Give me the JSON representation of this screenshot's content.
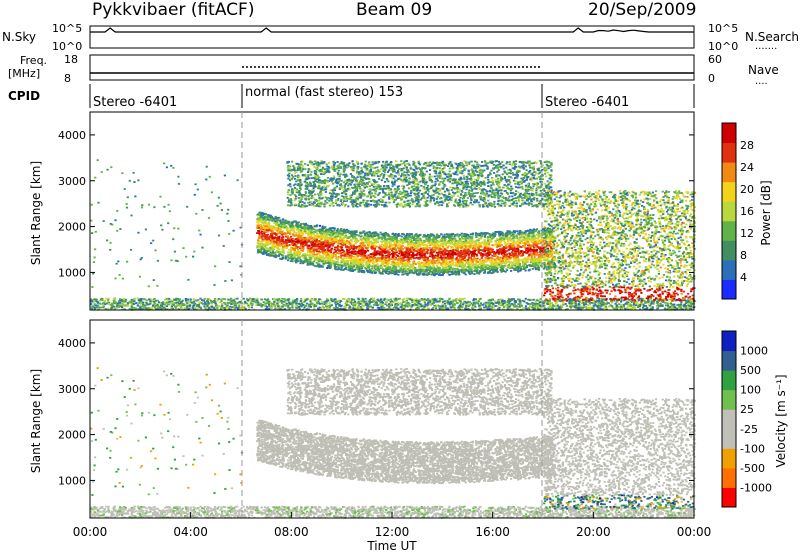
{
  "header": {
    "station": "Pykkvibaer (fitACF)",
    "beam": "Beam 09",
    "date": "20/Sep/2009"
  },
  "colors": {
    "power": [
      "#1a2cff",
      "#2a6fb8",
      "#3f8f60",
      "#62b24a",
      "#b8d83c",
      "#f2d21a",
      "#f08a10",
      "#e03010",
      "#d00000"
    ],
    "velocity": [
      "#ff0000",
      "#ff7000",
      "#f0a000",
      "#c0c0b8",
      "#c0c0b8",
      "#70c050",
      "#30a040",
      "#306090",
      "#1020c0"
    ],
    "ground_scatter": "#bebeb4"
  },
  "chart_data": [
    {
      "type": "line",
      "name": "noise-panel",
      "left_labels": [
        "N.Sky"
      ],
      "right_labels": [
        "N.Search",
        "......."
      ],
      "left_ticks": [
        "10^5",
        "10^0"
      ],
      "right_ticks": [
        "10^5",
        "10^0"
      ],
      "x": [
        0,
        24
      ],
      "description_series": [
        "N.Sky",
        "N.Search"
      ]
    },
    {
      "type": "line",
      "name": "freq-panel",
      "left_labels": [
        "Freq.",
        "[MHz]"
      ],
      "right_labels": [
        "Nave",
        "...."
      ],
      "left_ticks": [
        "18",
        "8"
      ],
      "right_ticks": [
        "60",
        "0"
      ]
    },
    {
      "type": "table",
      "name": "cpid-panel",
      "label": "CPID",
      "segments": [
        {
          "start": 0,
          "end": 6,
          "text": "Stereo -6401"
        },
        {
          "start": 6,
          "end": 18,
          "text": "normal (fast stereo) 153"
        },
        {
          "start": 18,
          "end": 24,
          "text": "Stereo -6401"
        }
      ]
    },
    {
      "type": "heatmap",
      "name": "power-panel",
      "ylabel": "Slant Range [km]",
      "ylim": [
        180,
        4500
      ],
      "yticks": [
        "1000",
        "2000",
        "3000",
        "4000"
      ],
      "xlim": [
        0,
        24
      ],
      "colorbar_label": "Power [dB]",
      "colorbar_ticks": [
        "4",
        "8",
        "12",
        "16",
        "20",
        "24",
        "28"
      ],
      "colorbar_range": [
        0,
        32
      ]
    },
    {
      "type": "heatmap",
      "name": "velocity-panel",
      "ylabel": "Slant Range [km]",
      "ylim": [
        180,
        4500
      ],
      "yticks": [
        "1000",
        "2000",
        "3000",
        "4000"
      ],
      "xlim": [
        0,
        24
      ],
      "colorbar_label": "Velocity [m s⁻¹]",
      "colorbar_ticks": [
        "-1000",
        "-500",
        "-100",
        "-25",
        "25",
        "100",
        "500",
        "1000"
      ]
    }
  ],
  "xaxis": {
    "ticks": [
      "00:00",
      "04:00",
      "08:00",
      "12:00",
      "16:00",
      "20:00",
      "00:00"
    ],
    "label": "Time UT"
  }
}
